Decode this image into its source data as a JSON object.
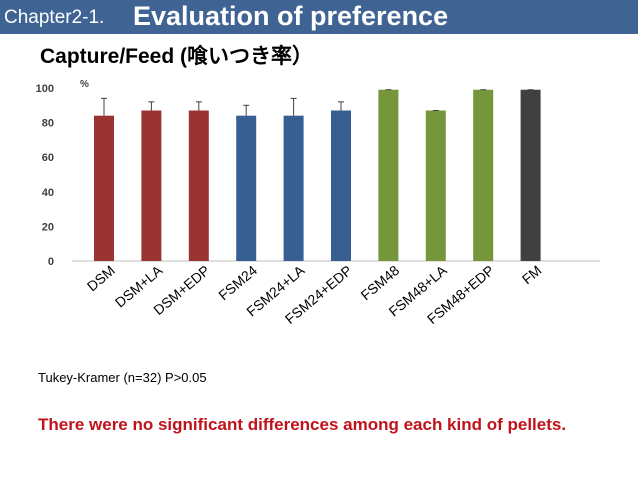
{
  "header": {
    "prefix": "Chapter2-1.",
    "title": "Evaluation of preference"
  },
  "chart_title": "Capture/Feed (喰いつき率）",
  "stat_note": "Tukey-Kramer (n=32)  P>0.05",
  "conclusion": "There were no significant differences among each kind of pellets.",
  "colors": {
    "header_bg": "#3f6494",
    "DSM": "#9b3333",
    "FSM24": "#385f92",
    "FSM48": "#76963b",
    "FM": "#404040",
    "conclusion_text": "#c0121b"
  },
  "chart_data": {
    "type": "bar",
    "title": "Capture/Feed (喰いつき率）",
    "ylabel": "%",
    "xlabel": "",
    "ylim": [
      0,
      100
    ],
    "yticks": [
      0,
      20,
      40,
      60,
      80,
      100
    ],
    "grid": false,
    "categories": [
      "DSM",
      "DSM+LA",
      "DSM+EDP",
      "FSM24",
      "FSM24+LA",
      "FSM24+EDP",
      "FSM48",
      "FSM48+LA",
      "FSM48+EDP",
      "FM"
    ],
    "values": [
      84,
      87,
      87,
      84,
      84,
      87,
      99,
      87,
      99,
      99
    ],
    "error_plus": [
      10,
      5,
      5,
      6,
      10,
      5,
      0,
      0,
      0,
      0
    ],
    "bar_color_keys": [
      "DSM",
      "DSM",
      "DSM",
      "FSM24",
      "FSM24",
      "FSM24",
      "FSM48",
      "FSM48",
      "FSM48",
      "FM"
    ]
  }
}
